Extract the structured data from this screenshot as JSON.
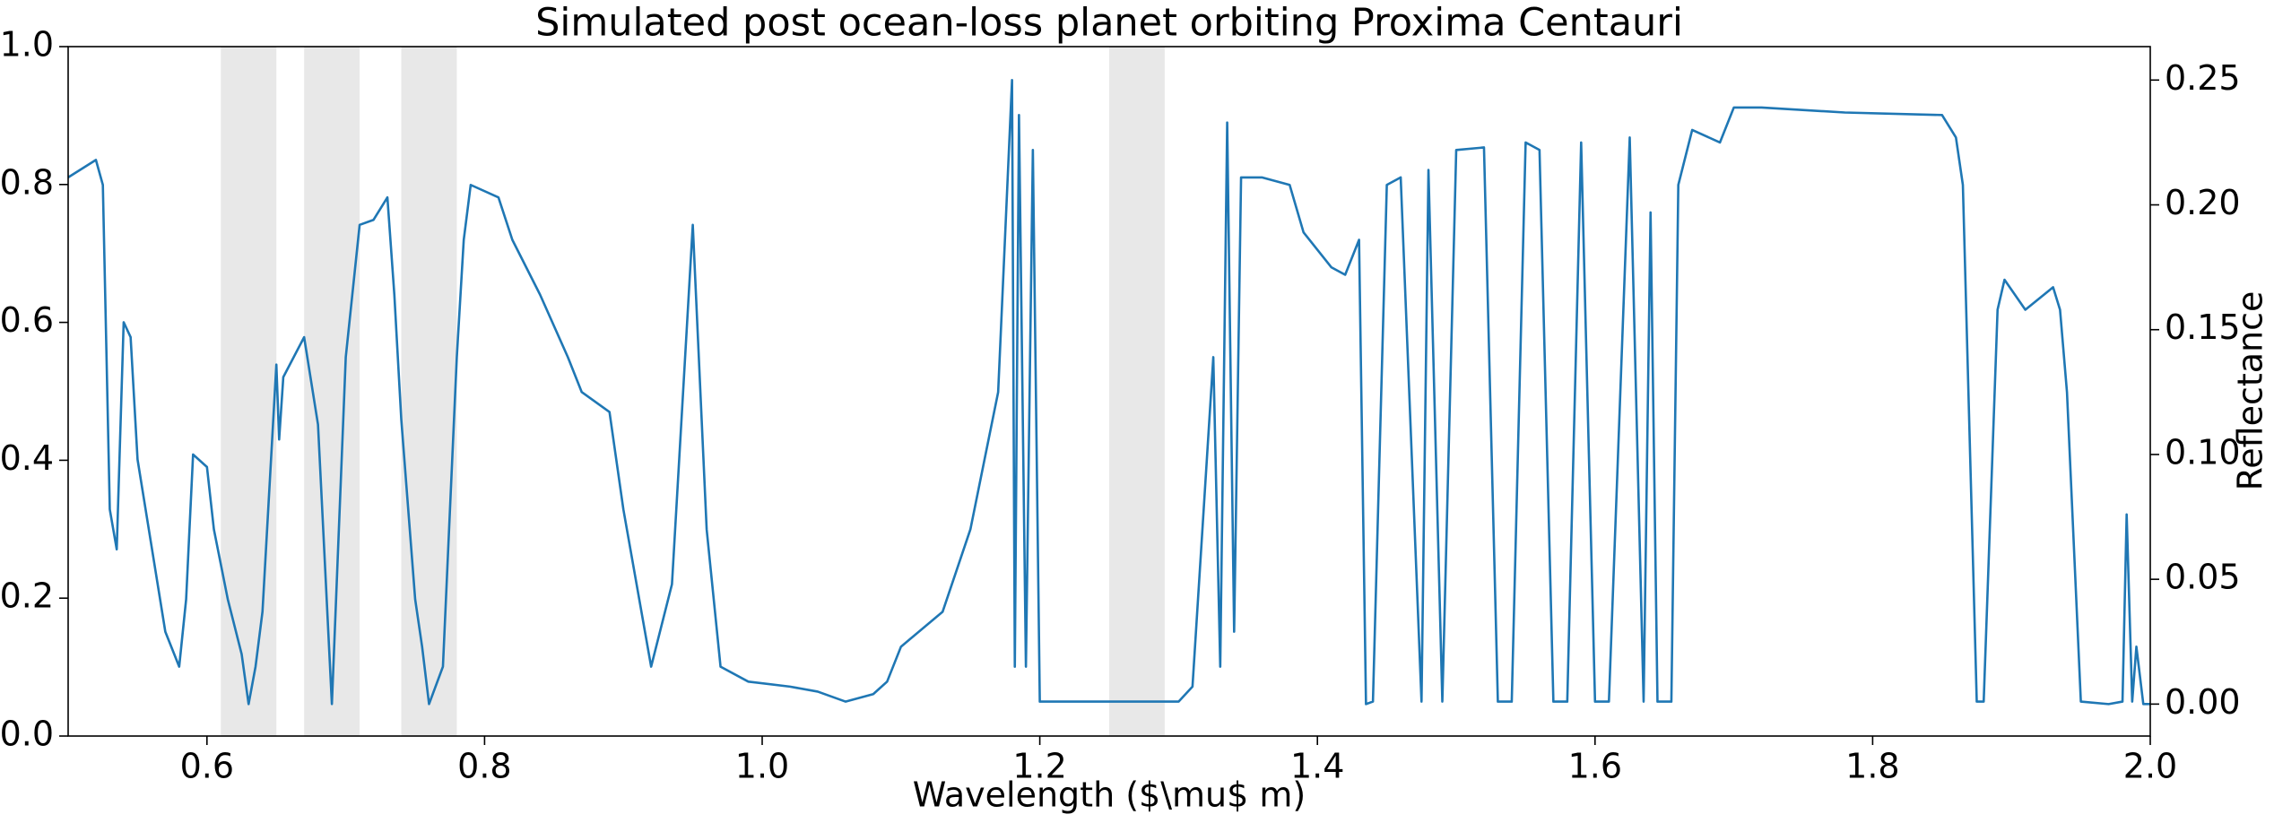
{
  "chart_data": {
    "type": "line",
    "title": "Simulated post ocean-loss planet orbiting Proxima Centauri",
    "x_label": "Wavelength ($\\mu$ m)",
    "y2_label": "Reflectance",
    "xlim": [
      0.5,
      2.0
    ],
    "xticks": [
      0.6,
      0.8,
      {
        "value": 1.0,
        "label": "1.0"
      },
      1.2,
      1.4,
      1.6,
      1.8,
      {
        "value": 2.0,
        "label": "2.0"
      }
    ],
    "ylim": [
      0,
      1
    ],
    "yticks": [
      {
        "value": 0,
        "label": "0.0"
      },
      0.2,
      0.4,
      0.6,
      0.8,
      {
        "value": 1,
        "label": "1.0"
      }
    ],
    "y2lim": [
      -0.0128,
      0.2634
    ],
    "y2ticks": [
      {
        "value": 0,
        "label": "0.00"
      },
      {
        "value": 0.05,
        "label": "0.05"
      },
      {
        "value": 0.1,
        "label": "0.10"
      },
      {
        "value": 0.15,
        "label": "0.15"
      },
      {
        "value": 0.2,
        "label": "0.20"
      },
      {
        "value": 0.25,
        "label": "0.25"
      }
    ],
    "shaded_regions": [
      [
        0.61,
        0.65
      ],
      [
        0.67,
        0.71
      ],
      [
        0.74,
        0.78
      ],
      [
        1.25,
        1.29
      ]
    ],
    "shade_color": "#e8e8e8",
    "x": [
      0.5,
      0.52,
      0.525,
      0.53,
      0.535,
      0.54,
      0.545,
      0.55,
      0.57,
      0.58,
      0.585,
      0.59,
      0.6,
      0.605,
      0.615,
      0.625,
      0.63,
      0.635,
      0.64,
      0.65,
      0.652,
      0.655,
      0.67,
      0.68,
      0.69,
      0.7,
      0.71,
      0.72,
      0.73,
      0.735,
      0.74,
      0.75,
      0.755,
      0.76,
      0.77,
      0.78,
      0.785,
      0.79,
      0.81,
      0.82,
      0.84,
      0.86,
      0.87,
      0.89,
      0.9,
      0.92,
      0.935,
      0.95,
      0.96,
      0.97,
      0.99,
      1.02,
      1.04,
      1.06,
      1.08,
      1.09,
      1.1,
      1.13,
      1.15,
      1.17,
      1.18,
      1.182,
      1.185,
      1.19,
      1.195,
      1.2,
      1.3,
      1.31,
      1.325,
      1.33,
      1.335,
      1.34,
      1.345,
      1.36,
      1.38,
      1.39,
      1.41,
      1.42,
      1.43,
      1.435,
      1.44,
      1.45,
      1.46,
      1.475,
      1.48,
      1.49,
      1.5,
      1.52,
      1.53,
      1.54,
      1.55,
      1.56,
      1.57,
      1.58,
      1.59,
      1.6,
      1.61,
      1.625,
      1.635,
      1.64,
      1.645,
      1.655,
      1.66,
      1.67,
      1.69,
      1.7,
      1.72,
      1.78,
      1.85,
      1.86,
      1.865,
      1.875,
      1.88,
      1.89,
      1.895,
      1.91,
      1.93,
      1.935,
      1.94,
      1.95,
      1.97,
      1.98,
      1.983,
      1.987,
      1.99,
      1.995,
      2.0
    ],
    "series": [
      {
        "color": "#1f77b4",
        "axis": "y2",
        "values": [
          0.211,
          0.218,
          0.208,
          0.078,
          0.062,
          0.153,
          0.147,
          0.098,
          0.029,
          0.015,
          0.042,
          0.1,
          0.095,
          0.07,
          0.042,
          0.02,
          0.0,
          0.015,
          0.037,
          0.136,
          0.106,
          0.131,
          0.147,
          0.112,
          0.0,
          0.139,
          0.192,
          0.194,
          0.203,
          0.164,
          0.114,
          0.042,
          0.023,
          0.0,
          0.015,
          0.139,
          0.186,
          0.208,
          0.203,
          0.186,
          0.164,
          0.139,
          0.125,
          0.117,
          0.078,
          0.015,
          0.048,
          0.192,
          0.07,
          0.015,
          0.009,
          0.007,
          0.005,
          0.001,
          0.004,
          0.009,
          0.023,
          0.037,
          0.07,
          0.125,
          0.25,
          0.015,
          0.236,
          0.015,
          0.222,
          0.001,
          0.001,
          0.007,
          0.139,
          0.015,
          0.233,
          0.029,
          0.211,
          0.211,
          0.208,
          0.189,
          0.175,
          0.172,
          0.186,
          0.0,
          0.001,
          0.208,
          0.211,
          0.001,
          0.214,
          0.001,
          0.222,
          0.223,
          0.001,
          0.001,
          0.225,
          0.222,
          0.001,
          0.001,
          0.225,
          0.001,
          0.001,
          0.227,
          0.001,
          0.197,
          0.001,
          0.001,
          0.208,
          0.23,
          0.225,
          0.239,
          0.239,
          0.237,
          0.236,
          0.227,
          0.208,
          0.001,
          0.001,
          0.158,
          0.17,
          0.158,
          0.167,
          0.158,
          0.125,
          0.001,
          0.0,
          0.001,
          0.076,
          0.001,
          0.023,
          0.0,
          0.0
        ]
      }
    ]
  }
}
